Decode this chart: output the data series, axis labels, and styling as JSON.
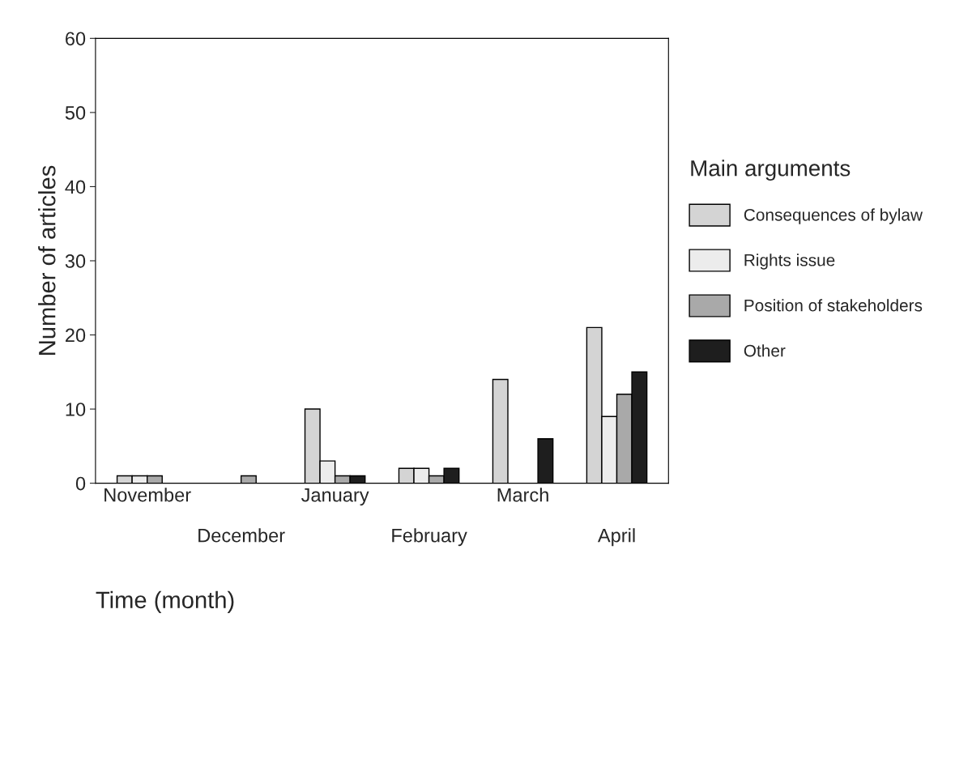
{
  "chart_data": {
    "type": "bar",
    "xlabel": "Time (month)",
    "ylabel": "Number of articles",
    "legend_title": "Main arguments",
    "categories": [
      "November",
      "December",
      "January",
      "February",
      "March",
      "April"
    ],
    "series": [
      {
        "name": "Consequences of bylaw",
        "color": "#d4d4d4",
        "values": [
          1,
          0,
          10,
          2,
          14,
          21
        ]
      },
      {
        "name": "Rights issue",
        "color": "#ececec",
        "values": [
          1,
          0,
          3,
          2,
          0,
          9
        ]
      },
      {
        "name": "Position of stakeholders",
        "color": "#a9a9a9",
        "values": [
          1,
          1,
          1,
          1,
          0,
          12
        ]
      },
      {
        "name": "Other",
        "color": "#1e1e1e",
        "values": [
          0,
          0,
          1,
          2,
          6,
          15
        ]
      }
    ],
    "ylim": [
      0,
      60
    ],
    "yticks": [
      0,
      10,
      20,
      30,
      40,
      50,
      60
    ],
    "grid": false,
    "legend": "right"
  }
}
